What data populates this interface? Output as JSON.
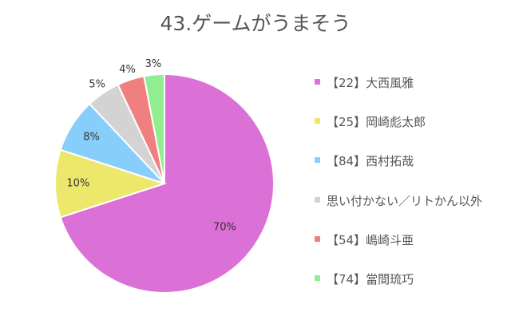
{
  "chart_data": {
    "type": "pie",
    "title": "43.ゲームがうまそう",
    "legend_position": "right",
    "slices": [
      {
        "label": "【22】大西風雅",
        "value": 70,
        "value_label": "70%",
        "color": "#db70d6"
      },
      {
        "label": "【25】岡崎彪太郎",
        "value": 10,
        "value_label": "10%",
        "color": "#ede86b"
      },
      {
        "label": "【84】西村拓哉",
        "value": 8,
        "value_label": "8%",
        "color": "#87cefa"
      },
      {
        "label": "思い付かない／リトかん以外",
        "value": 5,
        "value_label": "5%",
        "color": "#d3d3d3"
      },
      {
        "label": "【54】嶋崎斗亜",
        "value": 4,
        "value_label": "4%",
        "color": "#f08080"
      },
      {
        "label": "【74】當間琉巧",
        "value": 3,
        "value_label": "3%",
        "color": "#90ee90"
      }
    ]
  }
}
